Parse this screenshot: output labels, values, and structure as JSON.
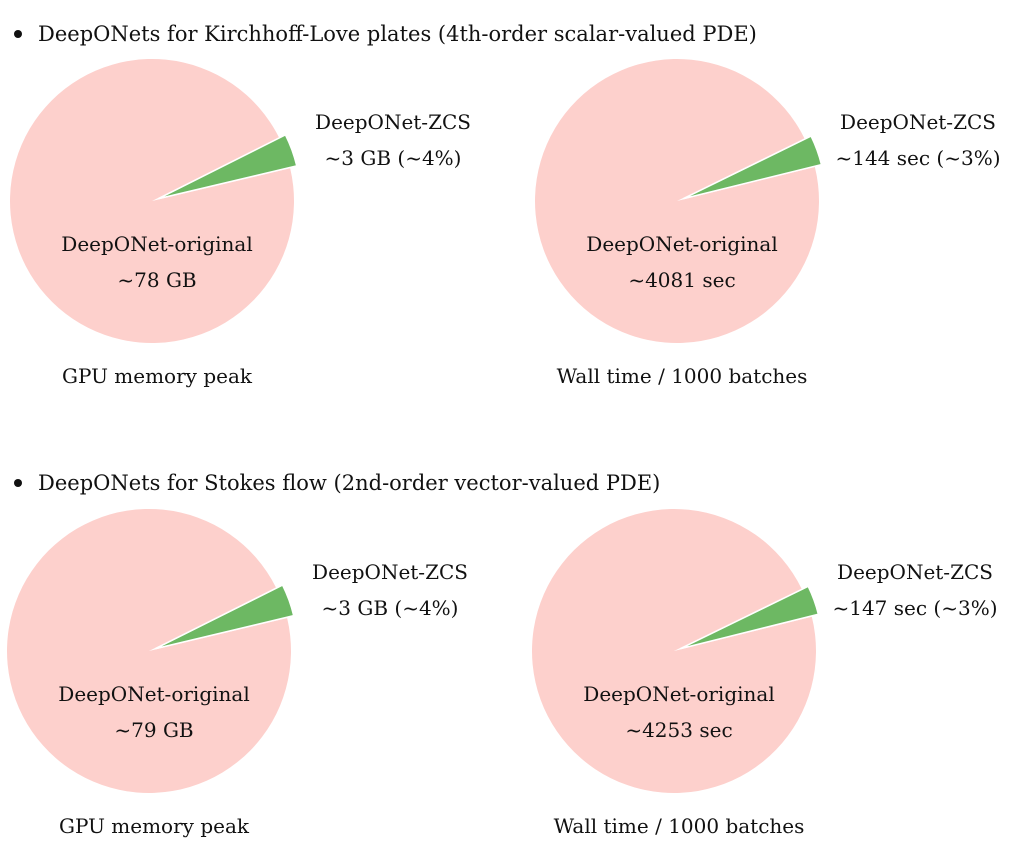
{
  "sections": [
    {
      "heading": "DeepONets for Kirchhoff-Love plates (4th-order scalar-valued PDE)",
      "charts": [
        {
          "large_label": "DeepONet-original",
          "large_value": "~78 GB",
          "small_label": "DeepONet-ZCS",
          "small_value": "~3 GB (~4%)",
          "caption": "GPU memory peak"
        },
        {
          "large_label": "DeepONet-original",
          "large_value": "~4081 sec",
          "small_label": "DeepONet-ZCS",
          "small_value": "~144 sec (~3%)",
          "caption": "Wall time / 1000 batches"
        }
      ]
    },
    {
      "heading": "DeepONets for Stokes flow (2nd-order vector-valued PDE)",
      "charts": [
        {
          "large_label": "DeepONet-original",
          "large_value": "~79 GB",
          "small_label": "DeepONet-ZCS",
          "small_value": "~3 GB (~4%)",
          "caption": "GPU memory peak"
        },
        {
          "large_label": "DeepONet-original",
          "large_value": "~4253 sec",
          "small_label": "DeepONet-ZCS",
          "small_value": "~147 sec (~3%)",
          "caption": "Wall time / 1000 batches"
        }
      ]
    }
  ],
  "chart_data": [
    {
      "type": "pie",
      "title": "GPU memory peak",
      "labels": [
        "DeepONet-original",
        "DeepONet-ZCS"
      ],
      "values": [
        78,
        3
      ],
      "units": "GB",
      "colors": [
        "#fdd0cc",
        "#6db863"
      ]
    },
    {
      "type": "pie",
      "title": "Wall time / 1000 batches",
      "labels": [
        "DeepONet-original",
        "DeepONet-ZCS"
      ],
      "values": [
        4081,
        144
      ],
      "units": "sec",
      "colors": [
        "#fdd0cc",
        "#6db863"
      ]
    },
    {
      "type": "pie",
      "title": "GPU memory peak",
      "labels": [
        "DeepONet-original",
        "DeepONet-ZCS"
      ],
      "values": [
        79,
        3
      ],
      "units": "GB",
      "colors": [
        "#fdd0cc",
        "#6db863"
      ]
    },
    {
      "type": "pie",
      "title": "Wall time / 1000 batches",
      "labels": [
        "DeepONet-original",
        "DeepONet-ZCS"
      ],
      "values": [
        4253,
        147
      ],
      "units": "sec",
      "colors": [
        "#fdd0cc",
        "#6db863"
      ]
    }
  ]
}
